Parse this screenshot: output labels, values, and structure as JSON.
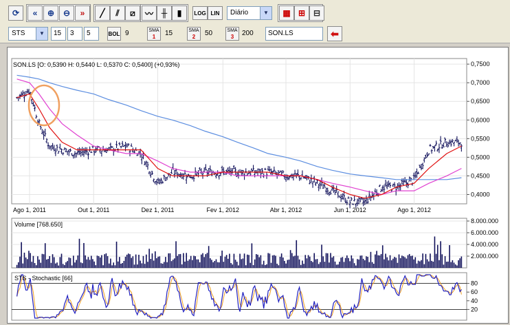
{
  "toolbar": {
    "period": "Diário",
    "log_label": "LOG",
    "lin_label": "LIN",
    "icons": [
      "refresh-icon",
      "scroll-left-icon",
      "zoom-in-icon",
      "zoom-out-icon",
      "scroll-right-icon",
      "draw-line-icon",
      "draw-parallel-icon",
      "draw-channel-icon",
      "line-chart-icon",
      "bar-chart-icon",
      "candle-chart-icon",
      "grid-small-icon",
      "grid-large-icon",
      "grid-single-icon"
    ]
  },
  "params": {
    "indicator": "STS",
    "k": "15",
    "d": "3",
    "slow": "5",
    "bol_label": "BOL",
    "bol_value": "9",
    "sma_label": "SMA",
    "sma1_num": "1",
    "sma1_value": "15",
    "sma2_num": "2",
    "sma2_value": "50",
    "sma3_num": "3",
    "sma3_value": "200",
    "symbol": "SON.LS"
  },
  "price_panel": {
    "header": "SON.LS [O: 0,5390  H: 0,5440  L: 0,5370  C: 0,5400] (+0,93%)",
    "y_ticks": [
      "0,7500",
      "0,7000",
      "0,6500",
      "0,6000",
      "0,5500",
      "0,5000",
      "0,4500",
      "0,4000"
    ],
    "x_ticks": [
      "Ago 1, 2011",
      "Out 1, 2011",
      "Dez 1, 2011",
      "Fev 1, 2012",
      "Abr 1, 2012",
      "Jun 1, 2012",
      "Ago 1, 2012"
    ]
  },
  "volume_panel": {
    "header": "Volume [768.650]",
    "y_ticks": [
      "8.000.000",
      "6.000.000",
      "4.000.000",
      "2.000.000"
    ]
  },
  "stoch_panel": {
    "header": "STS - Stochastic [66]",
    "y_ticks": [
      "80",
      "60",
      "40",
      "20"
    ]
  },
  "colors": {
    "price": "#10105a",
    "sma15": "#e01010",
    "sma50": "#e040d0",
    "sma200": "#5b8de0",
    "volume": "#10105a",
    "stoch_k": "#2020c0",
    "stoch_d": "#f0a020",
    "highlight": "#f0a060"
  },
  "chart_data": {
    "type": "line",
    "symbol": "SON.LS",
    "ohlc_last": {
      "open": 0.539,
      "high": 0.544,
      "low": 0.537,
      "close": 0.54,
      "change_pct": 0.93
    },
    "x_dates": [
      "2011-07-20",
      "2011-08-01",
      "2011-08-10",
      "2011-08-20",
      "2011-09-01",
      "2011-09-15",
      "2011-10-01",
      "2011-10-15",
      "2011-11-01",
      "2011-11-15",
      "2011-12-01",
      "2011-12-15",
      "2012-01-01",
      "2012-01-15",
      "2012-02-01",
      "2012-02-15",
      "2012-03-01",
      "2012-03-15",
      "2012-04-01",
      "2012-04-15",
      "2012-05-01",
      "2012-05-15",
      "2012-06-01",
      "2012-06-15",
      "2012-07-01",
      "2012-07-15",
      "2012-08-01",
      "2012-08-15",
      "2012-09-01",
      "2012-09-15"
    ],
    "close": [
      0.66,
      0.68,
      0.59,
      0.53,
      0.52,
      0.51,
      0.52,
      0.52,
      0.53,
      0.51,
      0.43,
      0.46,
      0.45,
      0.46,
      0.46,
      0.46,
      0.46,
      0.46,
      0.45,
      0.45,
      0.43,
      0.41,
      0.38,
      0.38,
      0.42,
      0.42,
      0.44,
      0.52,
      0.54,
      0.54
    ],
    "sma15": [
      0.66,
      0.67,
      0.63,
      0.58,
      0.54,
      0.52,
      0.52,
      0.52,
      0.52,
      0.52,
      0.47,
      0.45,
      0.45,
      0.45,
      0.46,
      0.46,
      0.46,
      0.46,
      0.45,
      0.45,
      0.44,
      0.42,
      0.4,
      0.39,
      0.4,
      0.42,
      0.43,
      0.47,
      0.51,
      0.53
    ],
    "sma50": [
      0.71,
      0.7,
      0.67,
      0.63,
      0.59,
      0.56,
      0.53,
      0.52,
      0.51,
      0.51,
      0.49,
      0.47,
      0.46,
      0.46,
      0.46,
      0.45,
      0.45,
      0.45,
      0.45,
      0.45,
      0.44,
      0.43,
      0.42,
      0.41,
      0.4,
      0.41,
      0.41,
      0.43,
      0.45,
      0.47
    ],
    "sma200": [
      0.72,
      0.715,
      0.71,
      0.7,
      0.69,
      0.68,
      0.67,
      0.655,
      0.64,
      0.625,
      0.61,
      0.6,
      0.585,
      0.57,
      0.555,
      0.54,
      0.525,
      0.51,
      0.5,
      0.49,
      0.475,
      0.465,
      0.455,
      0.45,
      0.445,
      0.44,
      0.44,
      0.44,
      0.44,
      0.445
    ],
    "volume_last": 768650,
    "stochastic_last": 66,
    "price_axis_range": [
      0.375,
      0.765
    ],
    "volume_axis_range": [
      0,
      8000000
    ],
    "stochastic_axis_range": [
      0,
      100
    ],
    "stochastic_levels": [
      20,
      80
    ]
  }
}
